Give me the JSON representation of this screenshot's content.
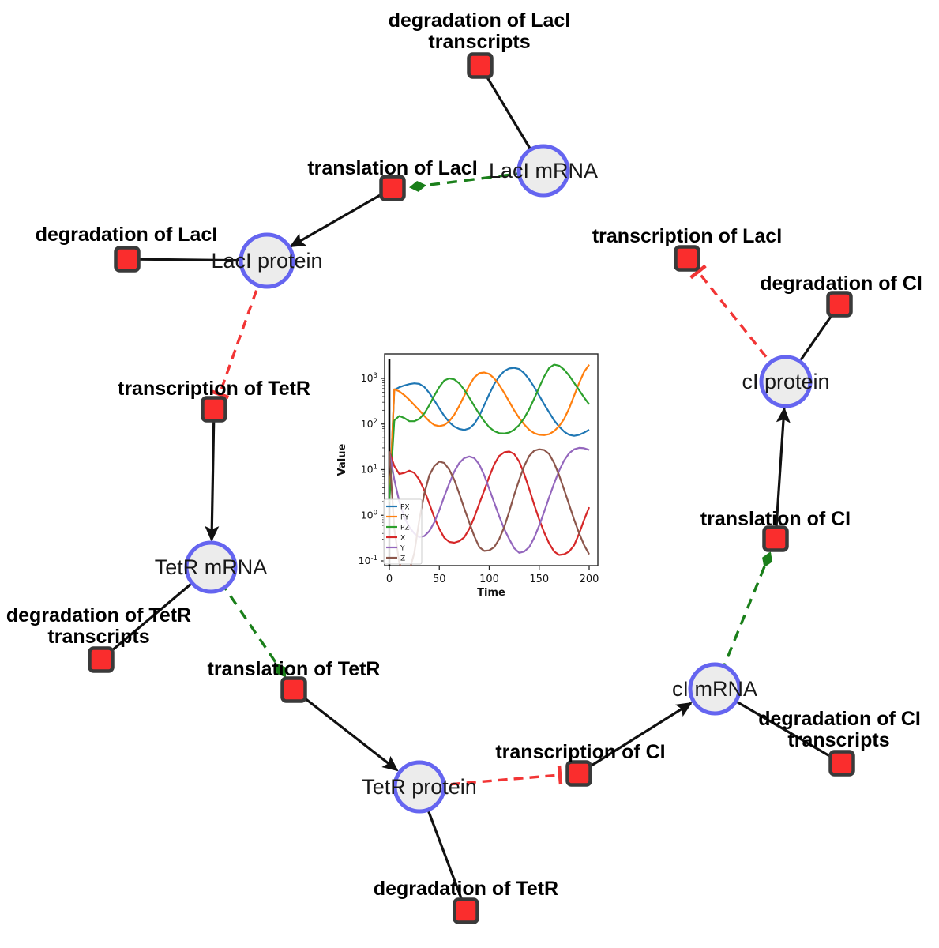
{
  "diagram": {
    "species": [
      {
        "label": "LacI mRNA"
      },
      {
        "label": "LacI protein"
      },
      {
        "label": "TetR mRNA"
      },
      {
        "label": "TetR protein"
      },
      {
        "label": "cI mRNA"
      },
      {
        "label": "cI protein"
      }
    ],
    "reactions": [
      {
        "lines": [
          "degradation of LacI",
          "transcripts"
        ]
      },
      {
        "lines": [
          "translation of LacI"
        ]
      },
      {
        "lines": [
          "degradation of LacI"
        ]
      },
      {
        "lines": [
          "transcription of LacI"
        ]
      },
      {
        "lines": [
          "degradation of CI"
        ]
      },
      {
        "lines": [
          "transcription of TetR"
        ]
      },
      {
        "lines": [
          "degradation of TetR",
          "transcripts"
        ]
      },
      {
        "lines": [
          "translation of TetR"
        ]
      },
      {
        "lines": [
          "degradation of TetR"
        ]
      },
      {
        "lines": [
          "transcription of CI"
        ]
      },
      {
        "lines": [
          "degradation of CI",
          "transcripts"
        ]
      },
      {
        "lines": [
          "translation of CI"
        ]
      }
    ],
    "edges": [
      {
        "from": "LacI mRNA",
        "to": "degradation of LacI transcripts",
        "type": "reactant"
      },
      {
        "from": "LacI mRNA",
        "to": "translation of LacI",
        "type": "modifier"
      },
      {
        "from": "translation of LacI",
        "to": "LacI protein",
        "type": "product"
      },
      {
        "from": "LacI protein",
        "to": "degradation of LacI",
        "type": "reactant"
      },
      {
        "from": "LacI protein",
        "to": "transcription of TetR",
        "type": "inhibition"
      },
      {
        "from": "transcription of TetR",
        "to": "TetR mRNA",
        "type": "product"
      },
      {
        "from": "TetR mRNA",
        "to": "degradation of TetR transcripts",
        "type": "reactant"
      },
      {
        "from": "TetR mRNA",
        "to": "translation of TetR",
        "type": "modifier"
      },
      {
        "from": "translation of TetR",
        "to": "TetR protein",
        "type": "product"
      },
      {
        "from": "TetR protein",
        "to": "degradation of TetR",
        "type": "reactant"
      },
      {
        "from": "TetR protein",
        "to": "transcription of CI",
        "type": "inhibition"
      },
      {
        "from": "transcription of CI",
        "to": "cI mRNA",
        "type": "product"
      },
      {
        "from": "cI mRNA",
        "to": "degradation of CI transcripts",
        "type": "reactant"
      },
      {
        "from": "cI mRNA",
        "to": "translation of CI",
        "type": "modifier"
      },
      {
        "from": "translation of CI",
        "to": "cI protein",
        "type": "product"
      },
      {
        "from": "cI protein",
        "to": "degradation of CI",
        "type": "reactant"
      },
      {
        "from": "cI protein",
        "to": "transcription of LacI",
        "type": "inhibition"
      }
    ],
    "colors": {
      "species_fill": "#ececec",
      "species_border": "#6565f0",
      "reaction_fill": "#fa2d2d",
      "reaction_border": "#3a3a3a",
      "edge_black": "#111111",
      "edge_activation_green": "#1a7f1a",
      "edge_inhibition_red": "#f23535"
    }
  },
  "chart_data": {
    "type": "line",
    "title": "",
    "xlabel": "Time",
    "ylabel": "Value",
    "y_scale": "log",
    "xlim": [
      -5,
      208
    ],
    "ylim": [
      0.078,
      3400
    ],
    "x_ticks": [
      0,
      50,
      100,
      150,
      200
    ],
    "y_ticks": [
      0.1,
      1,
      10,
      100,
      1000
    ],
    "grid": false,
    "legend_position": "lower left",
    "marker_line_x": 0,
    "x": [
      0,
      5,
      10,
      15,
      20,
      25,
      30,
      35,
      40,
      45,
      50,
      55,
      60,
      65,
      70,
      75,
      80,
      85,
      90,
      95,
      100,
      105,
      110,
      115,
      120,
      125,
      130,
      135,
      140,
      145,
      150,
      155,
      160,
      165,
      170,
      175,
      180,
      185,
      190,
      195,
      200
    ],
    "series": [
      {
        "name": "PX",
        "color": "#1f77b4",
        "values": [
          2,
          560,
          640,
          700,
          750,
          780,
          760,
          650,
          480,
          330,
          220,
          150,
          110,
          88,
          78,
          74,
          80,
          100,
          150,
          260,
          450,
          750,
          1100,
          1450,
          1650,
          1700,
          1600,
          1300,
          950,
          650,
          420,
          270,
          180,
          120,
          88,
          68,
          58,
          55,
          58,
          65,
          75
        ]
      },
      {
        "name": "PY",
        "color": "#ff7f0e",
        "values": [
          2,
          580,
          520,
          430,
          340,
          260,
          200,
          150,
          115,
          95,
          90,
          95,
          115,
          160,
          250,
          420,
          700,
          1050,
          1300,
          1350,
          1250,
          1000,
          720,
          480,
          310,
          200,
          135,
          98,
          75,
          63,
          58,
          57,
          60,
          70,
          90,
          130,
          220,
          420,
          800,
          1400,
          2000
        ]
      },
      {
        "name": "PZ",
        "color": "#2ca02c",
        "values": [
          2,
          120,
          150,
          135,
          115,
          115,
          130,
          170,
          260,
          420,
          650,
          900,
          1000,
          950,
          780,
          560,
          380,
          250,
          165,
          115,
          85,
          70,
          63,
          62,
          65,
          75,
          95,
          135,
          210,
          360,
          640,
          1100,
          1700,
          2000,
          1900,
          1550,
          1150,
          800,
          550,
          380,
          270
        ]
      },
      {
        "name": "X",
        "color": "#d62728",
        "values": [
          25,
          12,
          8,
          8.5,
          9.5,
          8.5,
          6,
          3.5,
          1.8,
          0.9,
          0.5,
          0.32,
          0.26,
          0.25,
          0.27,
          0.33,
          0.5,
          0.9,
          1.8,
          3.5,
          7,
          13,
          20,
          24,
          25,
          22,
          15,
          8,
          3.8,
          1.7,
          0.8,
          0.42,
          0.24,
          0.16,
          0.135,
          0.14,
          0.16,
          0.22,
          0.4,
          0.8,
          1.5
        ]
      },
      {
        "name": "Y",
        "color": "#9467bd",
        "values": [
          25,
          6,
          2,
          0.9,
          0.55,
          0.4,
          0.33,
          0.35,
          0.45,
          0.7,
          1.3,
          2.6,
          5,
          9,
          14,
          18,
          19.5,
          18,
          13,
          7.5,
          3.8,
          1.9,
          0.95,
          0.5,
          0.3,
          0.19,
          0.15,
          0.16,
          0.2,
          0.32,
          0.6,
          1.2,
          2.5,
          5,
          9.5,
          16,
          23,
          28,
          30,
          29.5,
          27
        ]
      },
      {
        "name": "Z",
        "color": "#8c564b",
        "values": [
          25,
          0.5,
          0.09,
          0.05,
          0.06,
          0.15,
          0.8,
          3,
          7.5,
          12,
          15,
          14,
          10,
          6,
          3,
          1.4,
          0.7,
          0.35,
          0.2,
          0.165,
          0.17,
          0.2,
          0.3,
          0.55,
          1.2,
          2.8,
          6,
          12,
          20,
          26,
          28,
          27,
          22,
          14,
          7.5,
          3.6,
          1.7,
          0.8,
          0.4,
          0.22,
          0.14
        ]
      }
    ]
  }
}
